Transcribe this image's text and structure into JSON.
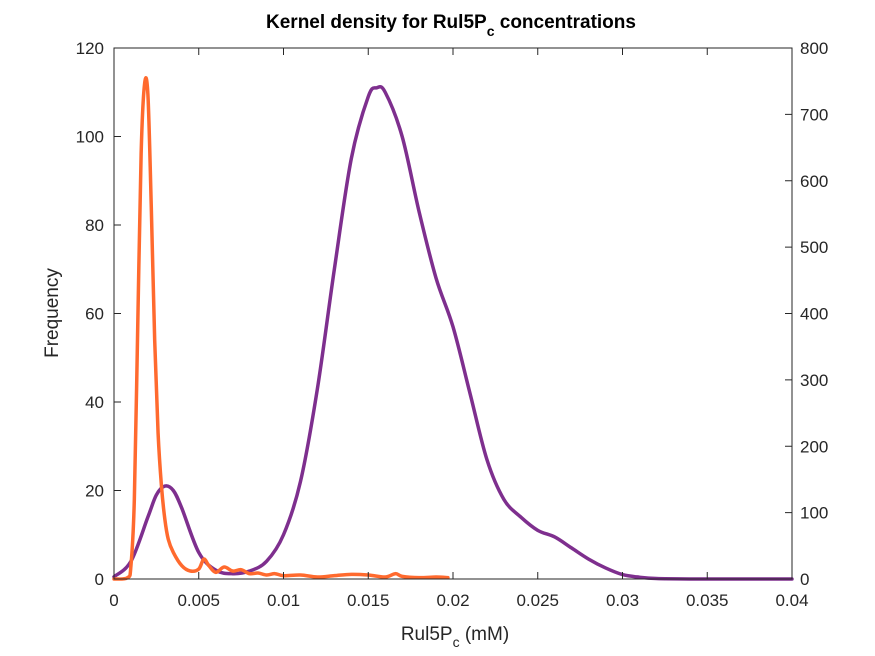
{
  "chart_data": {
    "type": "line",
    "title_main": "Kernel density for Rul5P",
    "title_sub": "c",
    "title_rest": " concentrations",
    "xlabel_main": "Rul5P",
    "xlabel_sub": "c",
    "xlabel_rest": " (mM)",
    "ylabel_left": "Frequency",
    "ylabel_right": "",
    "xlim": [
      0,
      0.04
    ],
    "ylim_left": [
      0,
      120
    ],
    "ylim_right": [
      0,
      800
    ],
    "xticks": [
      "0",
      "0.005",
      "0.01",
      "0.015",
      "0.02",
      "0.025",
      "0.03",
      "0.035",
      "0.04"
    ],
    "yticks_left": [
      "0",
      "20",
      "40",
      "60",
      "80",
      "100",
      "120"
    ],
    "yticks_right": [
      "0",
      "100",
      "200",
      "300",
      "400",
      "500",
      "600",
      "700",
      "800"
    ],
    "grid": false,
    "colors": {
      "series_left": "#7E2F8E",
      "series_right": "#FF6A2E",
      "axes": "#262626"
    },
    "series": [
      {
        "axis": "left",
        "x": [
          0,
          0.001,
          0.002,
          0.0025,
          0.003,
          0.0035,
          0.004,
          0.005,
          0.006,
          0.007,
          0.008,
          0.009,
          0.01,
          0.011,
          0.012,
          0.013,
          0.014,
          0.015,
          0.0155,
          0.016,
          0.017,
          0.018,
          0.019,
          0.02,
          0.021,
          0.022,
          0.023,
          0.024,
          0.025,
          0.026,
          0.027,
          0.028,
          0.029,
          0.03,
          0.031,
          0.032,
          0.034,
          0.036,
          0.038,
          0.04
        ],
        "values": [
          0.5,
          4,
          14,
          19,
          21,
          20,
          16,
          6,
          2,
          1.2,
          1.8,
          4,
          10,
          22,
          43,
          70,
          95,
          109,
          111,
          110,
          100,
          83,
          68,
          57,
          42,
          27,
          18,
          14,
          11,
          9.5,
          7,
          4.5,
          2.5,
          1,
          0.4,
          0.1,
          0,
          0,
          0,
          0
        ]
      },
      {
        "axis": "right",
        "x": [
          0,
          0.0008,
          0.001,
          0.0012,
          0.0014,
          0.0016,
          0.0018,
          0.002,
          0.0022,
          0.0024,
          0.0026,
          0.0028,
          0.003,
          0.0032,
          0.0035,
          0.004,
          0.0045,
          0.005,
          0.0053,
          0.0056,
          0.006,
          0.0065,
          0.007,
          0.0075,
          0.008,
          0.0085,
          0.009,
          0.0095,
          0.01,
          0.011,
          0.012,
          0.013,
          0.014,
          0.015,
          0.016,
          0.0166,
          0.017,
          0.018,
          0.019,
          0.0197
        ],
        "values": [
          0,
          2,
          20,
          120,
          380,
          640,
          745,
          730,
          560,
          360,
          220,
          140,
          90,
          60,
          40,
          20,
          12,
          15,
          30,
          20,
          10,
          18,
          12,
          14,
          8,
          9,
          6,
          8,
          5,
          6,
          3,
          5,
          7,
          6,
          3,
          8,
          4,
          2,
          3,
          2
        ]
      }
    ]
  }
}
